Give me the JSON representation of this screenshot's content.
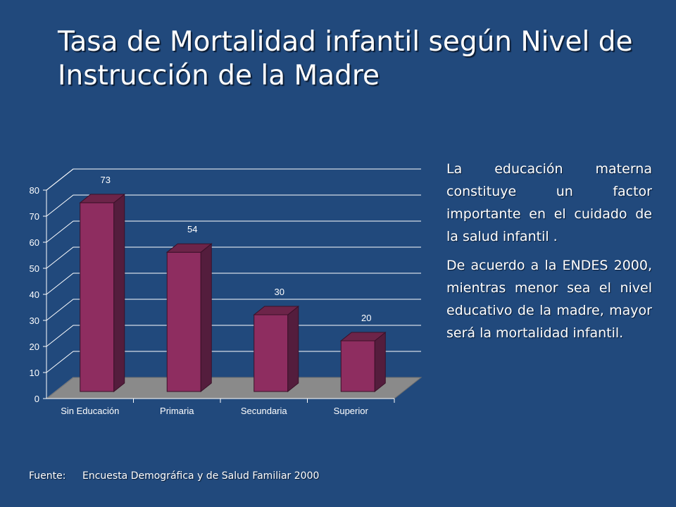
{
  "title": "Tasa de Mortalidad infantil según Nivel de Instrucción de la Madre",
  "paragraphs": [
    "La educación materna constituye un factor importante en el cuidado de la salud infantil .",
    "De acuerdo a la ENDES 2000, mientras menor sea el nivel educativo de la madre, mayor será la mortalidad infantil."
  ],
  "source": {
    "label": "Fuente:",
    "text": "Encuesta Demográfica y de Salud Familiar 2000"
  },
  "colors": {
    "background": "#21497c",
    "bar_front": "#8e2d60",
    "bar_side": "#541d3d",
    "bar_top": "#6d2449",
    "floor": "#8a8a8a"
  },
  "chart_data": {
    "type": "bar",
    "categories": [
      "Sin Educación",
      "Primaria",
      "Secundaria",
      "Superior"
    ],
    "values": [
      73,
      54,
      30,
      20
    ],
    "ylim": [
      0,
      80
    ],
    "yticks": [
      0,
      10,
      20,
      30,
      40,
      50,
      60,
      70,
      80
    ],
    "grid": true,
    "title": "",
    "xlabel": "",
    "ylabel": ""
  }
}
